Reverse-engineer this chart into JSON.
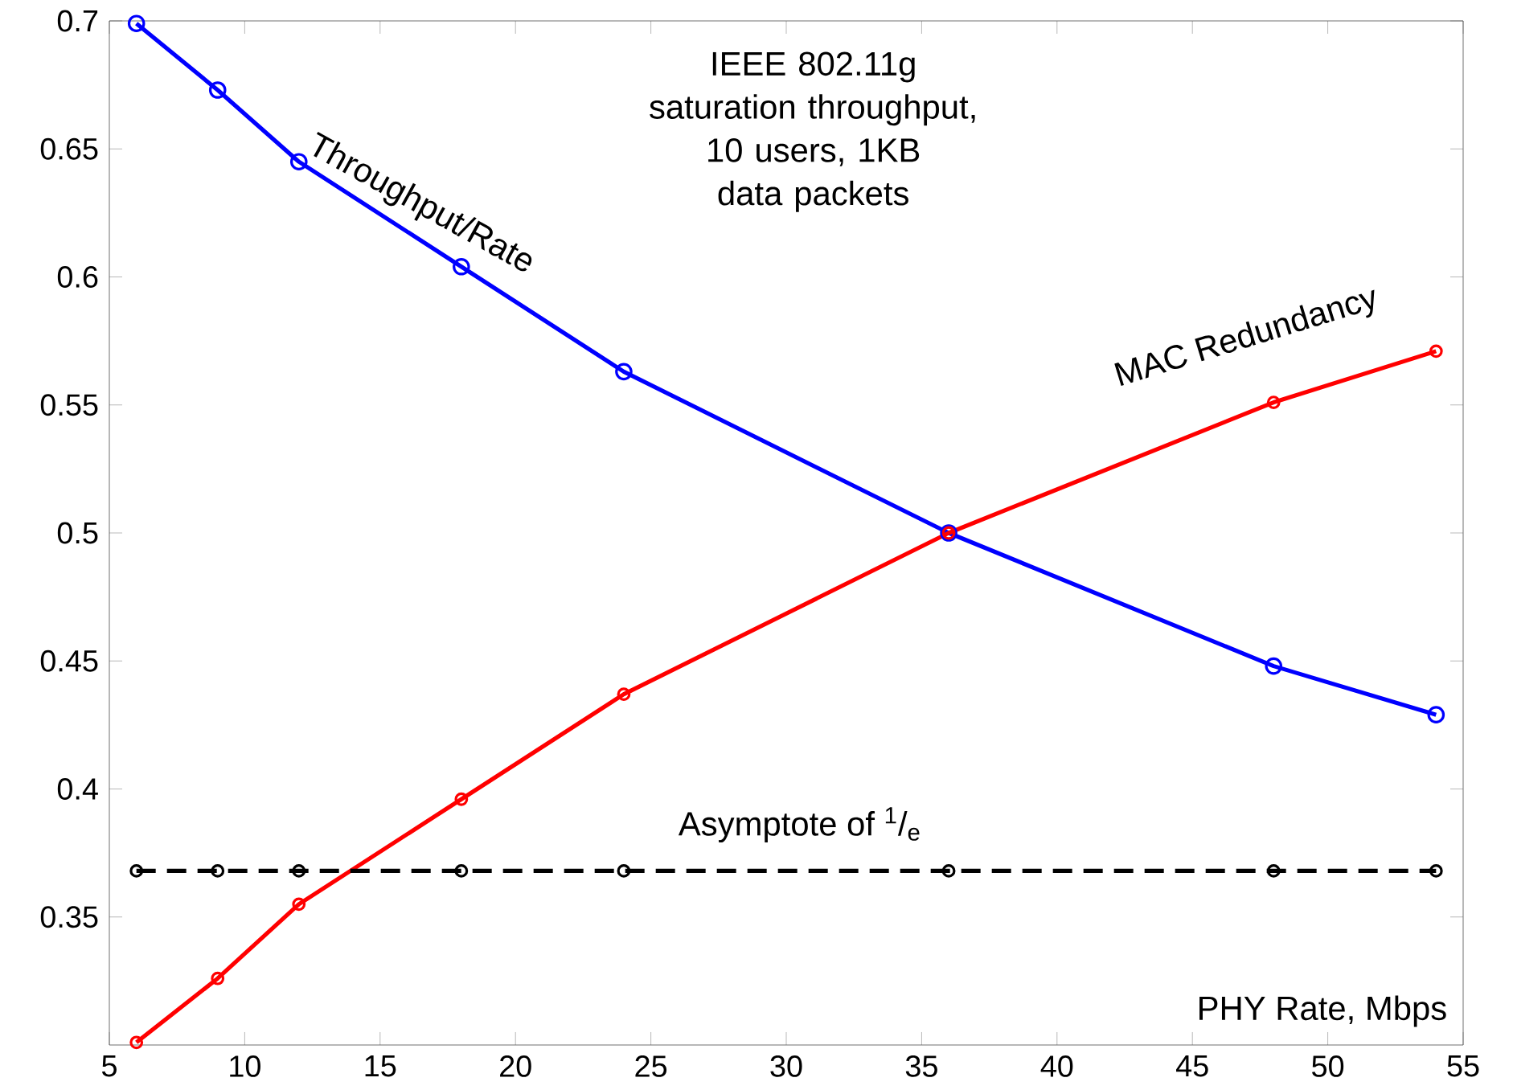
{
  "chart_data": {
    "type": "line",
    "title": "IEEE 802.11g saturation throughput, 10 users, 1KB data packets",
    "xlabel": "PHY Rate, Mbps",
    "x": [
      6,
      9,
      12,
      18,
      24,
      36,
      48,
      54
    ],
    "series": [
      {
        "name": "Throughput/Rate",
        "color": "#0000ff",
        "values": [
          0.699,
          0.673,
          0.645,
          0.604,
          0.563,
          0.5,
          0.448,
          0.429
        ]
      },
      {
        "name": "MAC Redundancy",
        "color": "#ff0000",
        "values": [
          0.301,
          0.326,
          0.355,
          0.396,
          0.437,
          0.5,
          0.551,
          0.571
        ]
      },
      {
        "name": "Asymptote of $^{1}$/$_{e}$",
        "color": "#000000",
        "line_style": "dashed",
        "values": [
          0.368,
          0.368,
          0.368,
          0.368,
          0.368,
          0.368,
          0.368,
          0.368
        ]
      }
    ],
    "xlim": [
      5,
      55
    ],
    "xticks": [
      5,
      10,
      15,
      20,
      25,
      30,
      35,
      40,
      45,
      50,
      55
    ],
    "ylim": [
      0.3,
      0.7
    ],
    "yticks": [
      0.35,
      0.4,
      0.45,
      0.5,
      0.55,
      0.6,
      0.65,
      0.7
    ],
    "grid": false,
    "marker": "circle"
  }
}
